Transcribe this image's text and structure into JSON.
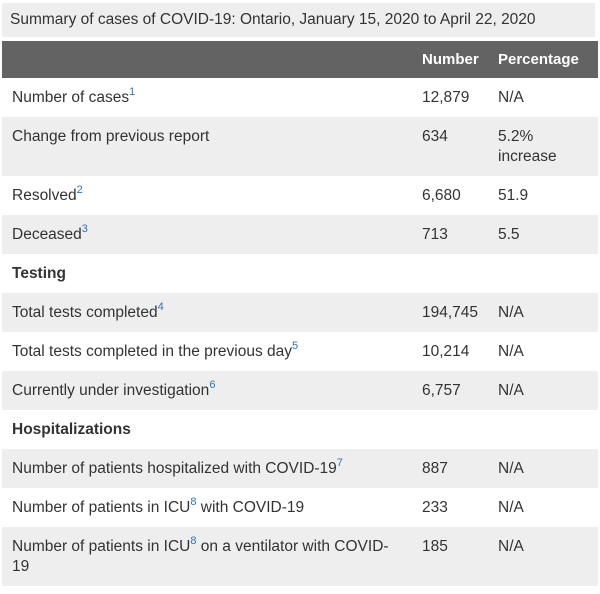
{
  "title": "Summary of cases of COVID-19: Ontario, January 15, 2020 to April 22, 2020",
  "colors": {
    "header_background": "#636363",
    "stripe_background": "#eeeeee",
    "caption_background": "#eeeeee",
    "footnote_link": "#2e75b5",
    "body_text": "#333333"
  },
  "table": {
    "columns": {
      "number": "Number",
      "percentage": "Percentage"
    },
    "rows": [
      {
        "type": "data",
        "label": "Number of cases",
        "footnote": "1",
        "label_after": "",
        "number": "12,879",
        "percentage": "N/A"
      },
      {
        "type": "data",
        "label": "Change from previous report",
        "footnote": "",
        "label_after": "",
        "number": "634",
        "percentage": "5.2% increase"
      },
      {
        "type": "data",
        "label": "Resolved",
        "footnote": "2",
        "label_after": "",
        "number": "6,680",
        "percentage": "51.9"
      },
      {
        "type": "data",
        "label": "Deceased",
        "footnote": "3",
        "label_after": "",
        "number": "713",
        "percentage": "5.5"
      },
      {
        "type": "section",
        "label": "Testing"
      },
      {
        "type": "data",
        "label": "Total tests completed",
        "footnote": "4",
        "label_after": "",
        "number": "194,745",
        "percentage": "N/A"
      },
      {
        "type": "data",
        "label": "Total tests completed in the previous day",
        "footnote": "5",
        "label_after": "",
        "number": "10,214",
        "percentage": "N/A"
      },
      {
        "type": "data",
        "label": "Currently under investigation",
        "footnote": "6",
        "label_after": "",
        "number": "6,757",
        "percentage": "N/A"
      },
      {
        "type": "section",
        "label": "Hospitalizations"
      },
      {
        "type": "data",
        "label": "Number of patients hospitalized with COVID-19",
        "footnote": "7",
        "label_after": "",
        "number": "887",
        "percentage": "N/A"
      },
      {
        "type": "data",
        "label": "Number of patients in ICU",
        "footnote": "8",
        "label_after": " with COVID-19",
        "number": "233",
        "percentage": "N/A"
      },
      {
        "type": "data",
        "label": "Number of patients in ICU",
        "footnote": "8",
        "label_after": " on a ventilator with COVID-19",
        "number": "185",
        "percentage": "N/A"
      }
    ]
  }
}
